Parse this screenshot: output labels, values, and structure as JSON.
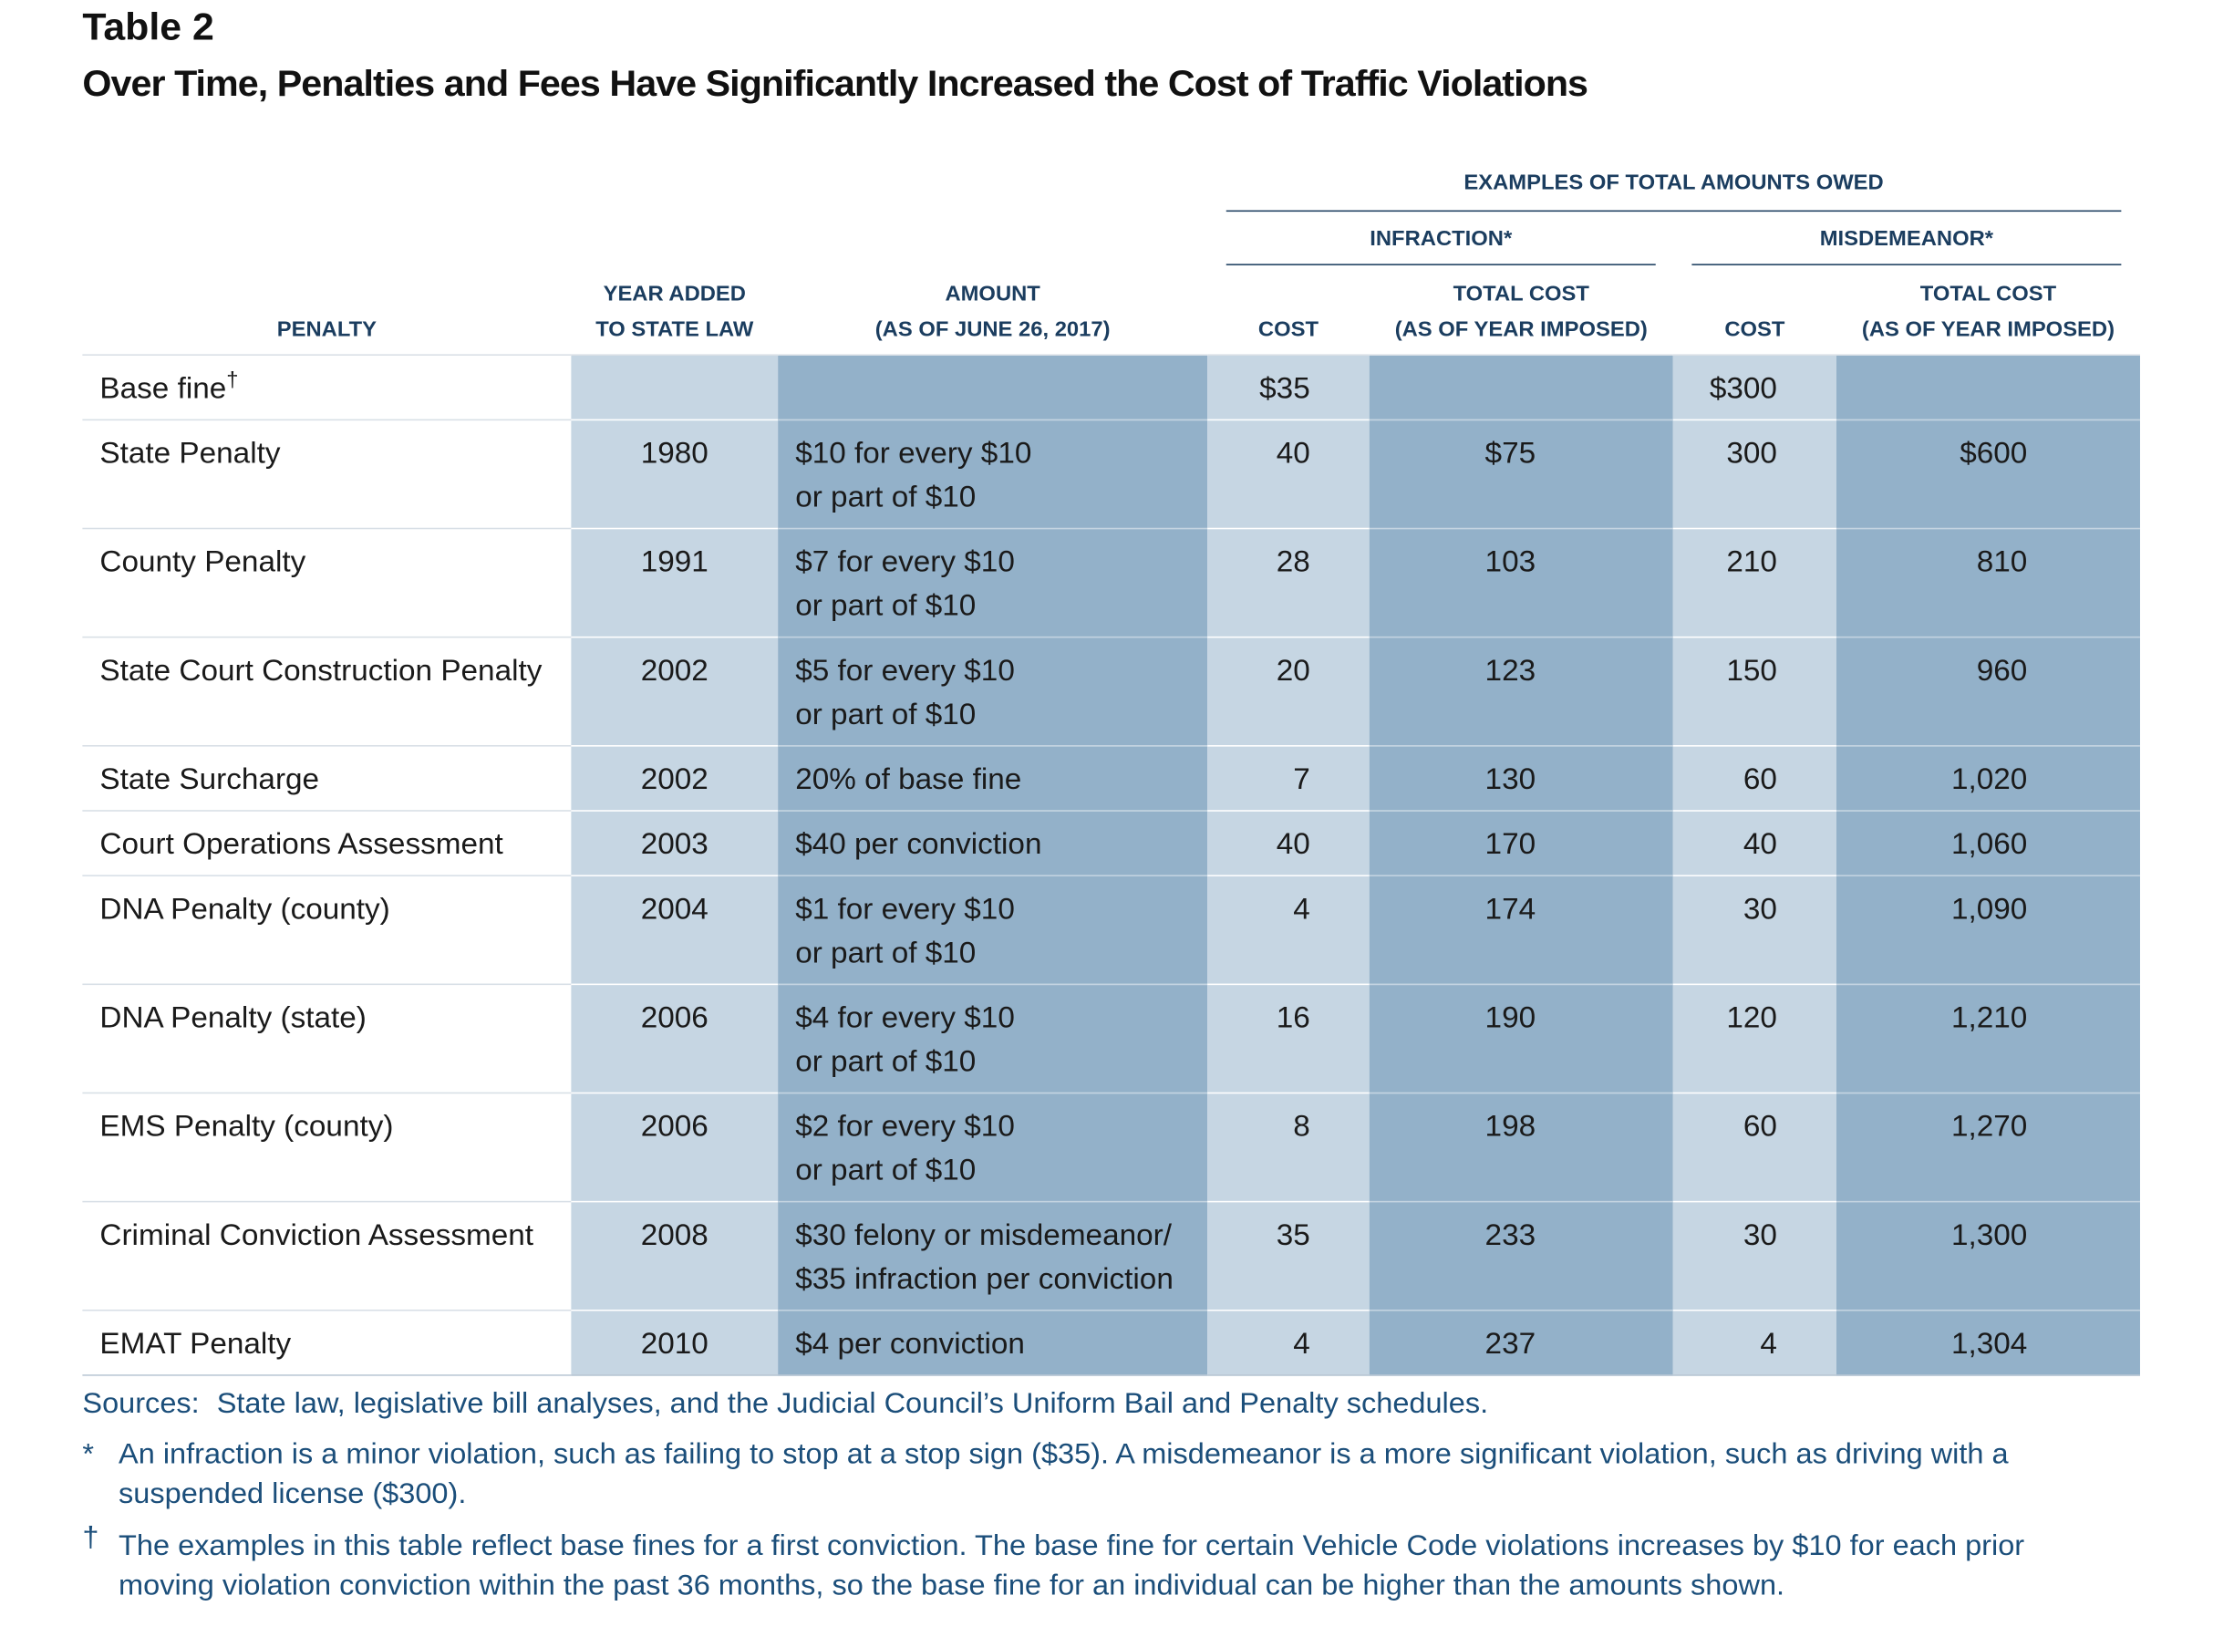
{
  "header": {
    "label": "Table 2",
    "title": "Over Time, Penalties and Fees Have Significantly Increased the Cost of Traffic Violations"
  },
  "table": {
    "group_header": "EXAMPLES OF TOTAL AMOUNTS OWED",
    "subgroups": [
      "INFRACTION*",
      "MISDEMEANOR*"
    ],
    "columns": [
      [
        "PENALTY"
      ],
      [
        "YEAR ADDED",
        "TO STATE LAW"
      ],
      [
        "AMOUNT",
        "(AS OF JUNE 26, 2017)"
      ],
      [
        "COST"
      ],
      [
        "TOTAL COST",
        "(AS OF YEAR IMPOSED)"
      ],
      [
        "COST"
      ],
      [
        "TOTAL COST",
        "(AS OF YEAR IMPOSED)"
      ]
    ],
    "rows": [
      [
        [
          "Base fine",
          "†"
        ],
        null,
        null,
        "$35",
        null,
        "$300",
        null
      ],
      [
        [
          "State Penalty"
        ],
        "1980",
        [
          "$10 for every $10",
          "or part of $10"
        ],
        "40",
        "$75",
        "300",
        "$600"
      ],
      [
        [
          "County Penalty"
        ],
        "1991",
        [
          "$7 for every $10",
          "or part of $10"
        ],
        "28",
        "103",
        "210",
        "810"
      ],
      [
        [
          "State Court Construction Penalty"
        ],
        "2002",
        [
          "$5 for every $10",
          "or part of $10"
        ],
        "20",
        "123",
        "150",
        "960"
      ],
      [
        [
          "State Surcharge"
        ],
        "2002",
        [
          "20% of base fine"
        ],
        "7",
        "130",
        "60",
        "1,020"
      ],
      [
        [
          "Court Operations Assessment"
        ],
        "2003",
        [
          "$40 per conviction"
        ],
        "40",
        "170",
        "40",
        "1,060"
      ],
      [
        [
          "DNA Penalty (county)"
        ],
        "2004",
        [
          "$1 for every $10",
          "or part of $10"
        ],
        "4",
        "174",
        "30",
        "1,090"
      ],
      [
        [
          "DNA Penalty (state)"
        ],
        "2006",
        [
          "$4 for every $10",
          "or part of $10"
        ],
        "16",
        "190",
        "120",
        "1,210"
      ],
      [
        [
          "EMS Penalty (county)"
        ],
        "2006",
        [
          "$2 for every $10",
          "or part of $10"
        ],
        "8",
        "198",
        "60",
        "1,270"
      ],
      [
        [
          "Criminal Conviction Assessment"
        ],
        "2008",
        [
          "$30 felony or misdemeanor/",
          "$35 infraction per conviction"
        ],
        "35",
        "233",
        "30",
        "1,300"
      ],
      [
        [
          "EMAT Penalty"
        ],
        "2010",
        [
          "$4 per conviction"
        ],
        "4",
        "237",
        "4",
        "1,304"
      ]
    ]
  },
  "footer": {
    "sources_label": "Sources:",
    "sources": "State law, legislative bill analyses, and the Judicial Council’s Uniform Bail and Penalty schedules.",
    "notes": [
      {
        "symbol": "*",
        "text": "An infraction is a minor violation, such as failing to stop at a stop sign ($35). A misdemeanor is a more significant violation, such as driving with a suspended license ($300)."
      },
      {
        "symbol": "†",
        "text": "The examples in this table reflect base fines for a first conviction. The base fine for certain Vehicle Code violations increases by $10 for each prior moving violation conviction within the past 36 months, so the base fine for an individual can be higher than the amounts shown."
      }
    ]
  }
}
